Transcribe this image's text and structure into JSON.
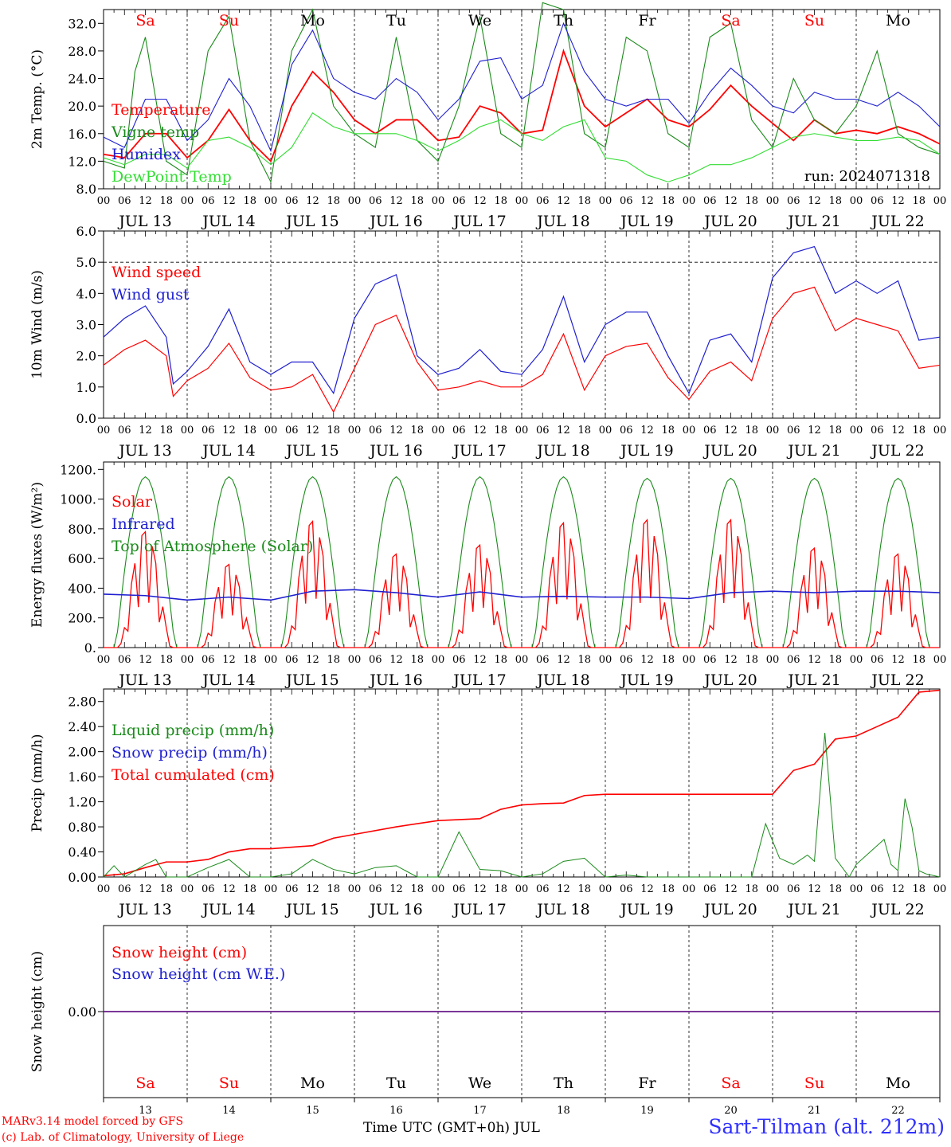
{
  "footer": {
    "model": "MARv3.14 model forced by GFS",
    "credit": "(c) Lab. of Climatology, University of Liege",
    "time_axis": "Time UTC (GMT+0h) JUL",
    "station": "Sart-Tilman (alt. 212m)"
  },
  "colors": {
    "red": "#ff0000",
    "green": "#1a8a1a",
    "blue": "#1f1fd0",
    "lightgreen": "#33dd33",
    "purple": "#6a1a8a"
  },
  "chart_data": [
    {
      "type": "line",
      "ylabel": "2m Temp. (°C)",
      "ylim": [
        8,
        34
      ],
      "yticks": [
        8.0,
        12.0,
        16.0,
        20.0,
        24.0,
        28.0,
        32.0
      ],
      "ytick_labels": [
        "8.0",
        "12.0",
        "16.0",
        "20.0",
        "24.0",
        "28.0",
        "32.0"
      ],
      "x_hours_labels": [
        "00",
        "06",
        "12",
        "18"
      ],
      "x_day_labels": [
        "JUL 13",
        "JUL 14",
        "JUL 15",
        "JUL 16",
        "JUL 17",
        "JUL 18",
        "JUL 19",
        "JUL 20",
        "JUL 21",
        "JUL 22"
      ],
      "weekdays": [
        "Sa",
        "Su",
        "Mo",
        "Tu",
        "We",
        "Th",
        "Fr",
        "Sa",
        "Su",
        "Mo"
      ],
      "weekday_colors": [
        "red",
        "red",
        "black",
        "black",
        "black",
        "black",
        "black",
        "red",
        "red",
        "black"
      ],
      "annotation": "run: 2024071318",
      "legend": [
        "Temperature",
        "Vigne temp",
        "Humidex",
        "DewPoint Temp"
      ],
      "series": [
        {
          "name": "Temperature",
          "color": "red",
          "x": [
            0,
            6,
            12,
            18,
            24,
            30,
            36,
            42,
            48,
            54,
            60,
            66,
            72,
            78,
            84,
            90,
            96,
            102,
            108,
            114,
            120,
            126,
            132,
            138,
            144,
            150,
            156,
            162,
            168,
            174,
            180,
            186,
            192,
            198,
            204,
            210,
            216,
            222,
            228,
            234,
            240
          ],
          "values": [
            13,
            12.5,
            16,
            16,
            12.5,
            15,
            19.5,
            15,
            12,
            20,
            25,
            22,
            18,
            16,
            18,
            18,
            15,
            15.5,
            20,
            19,
            16,
            16.5,
            28,
            20,
            17,
            19,
            21,
            18,
            17,
            19.5,
            23,
            20,
            17.5,
            15,
            18,
            16,
            16.5,
            16,
            17,
            16,
            14.5
          ]
        },
        {
          "name": "Vigne temp",
          "color": "green",
          "x": [
            0,
            6,
            9,
            12,
            18,
            24,
            30,
            36,
            42,
            48,
            54,
            60,
            66,
            72,
            78,
            84,
            90,
            96,
            102,
            108,
            114,
            120,
            126,
            132,
            138,
            144,
            150,
            156,
            162,
            168,
            174,
            180,
            186,
            192,
            198,
            204,
            210,
            216,
            222,
            228,
            234,
            240
          ],
          "values": [
            12,
            11,
            25,
            30,
            12,
            10,
            28,
            33,
            15,
            9,
            28,
            34,
            20,
            16,
            14,
            30,
            15,
            12,
            20,
            33,
            16,
            14,
            35,
            34,
            16,
            14,
            30,
            28,
            16,
            14,
            30,
            32,
            18,
            14,
            24,
            18,
            16,
            20,
            28,
            16,
            14,
            13
          ]
        },
        {
          "name": "Humidex",
          "color": "blue",
          "x": [
            0,
            6,
            12,
            18,
            24,
            30,
            36,
            42,
            48,
            54,
            60,
            66,
            72,
            78,
            84,
            90,
            96,
            102,
            108,
            114,
            120,
            126,
            132,
            138,
            144,
            150,
            156,
            162,
            168,
            174,
            180,
            186,
            192,
            198,
            204,
            210,
            216,
            222,
            228,
            234,
            240
          ],
          "values": [
            15.5,
            14,
            21,
            21,
            15,
            18,
            24,
            20,
            13.5,
            26,
            31,
            24,
            22,
            21,
            24,
            22,
            18,
            21,
            26.5,
            27,
            21,
            23,
            32,
            25,
            21,
            20,
            21,
            21,
            17.5,
            22,
            25.5,
            23,
            20,
            19,
            22,
            21,
            21,
            20,
            22,
            20,
            17
          ]
        },
        {
          "name": "DewPoint Temp",
          "color": "lightgreen",
          "x": [
            0,
            6,
            12,
            18,
            24,
            30,
            36,
            42,
            48,
            54,
            60,
            66,
            72,
            78,
            84,
            90,
            96,
            102,
            108,
            114,
            120,
            126,
            132,
            138,
            144,
            150,
            156,
            162,
            168,
            174,
            180,
            186,
            192,
            198,
            204,
            210,
            216,
            222,
            228,
            234,
            240
          ],
          "values": [
            12.5,
            11.5,
            13,
            13,
            11,
            15,
            15.5,
            14,
            11.5,
            14,
            19,
            17,
            16,
            16,
            16,
            15,
            13.5,
            15,
            17,
            18,
            16,
            15,
            17,
            18,
            12.5,
            12,
            10,
            9,
            10,
            11.5,
            11.5,
            12.5,
            14,
            15.5,
            16,
            15.5,
            15,
            15,
            15.5,
            15,
            13
          ]
        }
      ]
    },
    {
      "type": "line",
      "ylabel": "10m Wind (m/s)",
      "ylim": [
        0,
        6
      ],
      "yticks": [
        0,
        1,
        2,
        3,
        4,
        5,
        6
      ],
      "ytick_labels": [
        "0.0",
        "1.0",
        "2.0",
        "3.0",
        "4.0",
        "5.0",
        "6.0"
      ],
      "x_hours_labels": [
        "00",
        "06",
        "12",
        "18"
      ],
      "x_day_labels": [
        "JUL 13",
        "JUL 14",
        "JUL 15",
        "JUL 16",
        "JUL 17",
        "JUL 18",
        "JUL 19",
        "JUL 20",
        "JUL 21",
        "JUL 22"
      ],
      "reference_line": 5.0,
      "legend": [
        "Wind speed",
        "Wind gust"
      ],
      "series": [
        {
          "name": "Wind speed",
          "color": "red",
          "x": [
            0,
            6,
            12,
            18,
            20,
            24,
            30,
            36,
            42,
            48,
            54,
            60,
            66,
            72,
            78,
            84,
            90,
            96,
            102,
            108,
            114,
            120,
            126,
            132,
            138,
            144,
            150,
            156,
            162,
            168,
            174,
            180,
            186,
            192,
            198,
            204,
            210,
            216,
            222,
            228,
            234,
            240
          ],
          "values": [
            1.7,
            2.2,
            2.5,
            2.0,
            0.7,
            1.2,
            1.6,
            2.4,
            1.3,
            0.9,
            1.0,
            1.4,
            0.2,
            1.6,
            3.0,
            3.3,
            1.8,
            0.9,
            1.0,
            1.2,
            1.0,
            1.0,
            1.4,
            2.7,
            0.9,
            2.0,
            2.3,
            2.4,
            1.3,
            0.6,
            1.5,
            1.8,
            1.2,
            3.2,
            4.0,
            4.2,
            2.8,
            3.2,
            3.0,
            2.8,
            1.6,
            1.7
          ]
        },
        {
          "name": "Wind gust",
          "color": "blue",
          "x": [
            0,
            6,
            12,
            18,
            20,
            24,
            30,
            36,
            42,
            48,
            54,
            60,
            66,
            72,
            78,
            84,
            90,
            96,
            102,
            108,
            114,
            120,
            126,
            132,
            138,
            144,
            150,
            156,
            162,
            168,
            174,
            180,
            186,
            192,
            198,
            204,
            210,
            216,
            222,
            228,
            234,
            240
          ],
          "values": [
            2.6,
            3.2,
            3.6,
            2.6,
            1.1,
            1.5,
            2.3,
            3.5,
            1.8,
            1.4,
            1.8,
            1.8,
            0.8,
            3.2,
            4.3,
            4.6,
            2.0,
            1.4,
            1.6,
            2.2,
            1.5,
            1.4,
            2.2,
            3.9,
            1.8,
            3.0,
            3.4,
            3.4,
            2.0,
            0.8,
            2.5,
            2.7,
            1.8,
            4.5,
            5.3,
            5.5,
            4.0,
            4.4,
            4.0,
            4.4,
            2.5,
            2.6
          ]
        }
      ]
    },
    {
      "type": "line",
      "ylabel": "Energy fluxes (W/m²)",
      "ylim": [
        0,
        1250
      ],
      "yticks": [
        0,
        200,
        400,
        600,
        800,
        1000,
        1200
      ],
      "ytick_labels": [
        "0.",
        "200.",
        "400.",
        "600.",
        "800.",
        "1000.",
        "1200."
      ],
      "x_hours_labels": [
        "00",
        "06",
        "12",
        "18"
      ],
      "x_day_labels": [
        "JUL 13",
        "JUL 14",
        "JUL 15",
        "JUL 16",
        "JUL 17",
        "JUL 18",
        "JUL 19",
        "JUL 20",
        "JUL 21",
        "JUL 22"
      ],
      "legend": [
        "Solar",
        "Infrared",
        "Top of Atmosphere (Solar)"
      ],
      "daily_peaks": {
        "solar": [
          780,
          560,
          850,
          630,
          690,
          840,
          860,
          860,
          670,
          630
        ],
        "toa": [
          1150,
          1150,
          1150,
          1150,
          1150,
          1150,
          1140,
          1140,
          1140,
          1140
        ]
      },
      "series": [
        {
          "name": "Infrared",
          "color": "blue",
          "x": [
            0,
            12,
            24,
            36,
            48,
            60,
            72,
            84,
            96,
            108,
            120,
            132,
            144,
            156,
            168,
            180,
            192,
            204,
            216,
            228,
            240
          ],
          "values": [
            360,
            350,
            320,
            340,
            320,
            380,
            390,
            370,
            340,
            375,
            340,
            345,
            340,
            340,
            330,
            370,
            380,
            370,
            380,
            380,
            370
          ]
        }
      ]
    },
    {
      "type": "line",
      "ylabel": "Precip (mm/h)",
      "ylim": [
        0,
        3.0
      ],
      "yticks": [
        0,
        0.4,
        0.8,
        1.2,
        1.6,
        2.0,
        2.4,
        2.8
      ],
      "ytick_labels": [
        "0.00",
        "0.40",
        "0.80",
        "1.20",
        "1.60",
        "2.00",
        "2.40",
        "2.80"
      ],
      "x_hours_labels": [
        "00",
        "06",
        "12",
        "18"
      ],
      "x_day_labels": [
        "JUL 13",
        "JUL 14",
        "JUL 15",
        "JUL 16",
        "JUL 17",
        "JUL 18",
        "JUL 19",
        "JUL 20",
        "JUL 21",
        "JUL 22"
      ],
      "legend": [
        "Liquid precip (mm/h)",
        "Snow precip (mm/h)",
        "Total cumulated (cm)"
      ],
      "series": [
        {
          "name": "Total cumulated (cm)",
          "color": "red",
          "x": [
            0,
            6,
            12,
            18,
            24,
            30,
            36,
            42,
            48,
            60,
            66,
            72,
            84,
            96,
            108,
            114,
            120,
            126,
            132,
            138,
            144,
            156,
            168,
            180,
            192,
            198,
            204,
            210,
            216,
            222,
            228,
            234,
            240
          ],
          "values": [
            0.02,
            0.05,
            0.15,
            0.24,
            0.24,
            0.28,
            0.4,
            0.45,
            0.45,
            0.5,
            0.62,
            0.68,
            0.8,
            0.9,
            0.93,
            1.08,
            1.15,
            1.17,
            1.18,
            1.3,
            1.32,
            1.32,
            1.32,
            1.32,
            1.32,
            1.7,
            1.8,
            2.2,
            2.25,
            2.4,
            2.55,
            2.95,
            2.98
          ]
        },
        {
          "name": "Liquid precip (mm/h)",
          "color": "green",
          "x": [
            0,
            3,
            6,
            12,
            15,
            18,
            24,
            30,
            36,
            42,
            48,
            54,
            60,
            66,
            72,
            78,
            84,
            90,
            96,
            102,
            108,
            114,
            120,
            126,
            132,
            138,
            144,
            150,
            156,
            162,
            168,
            174,
            180,
            186,
            190,
            194,
            198,
            202,
            204,
            207,
            210,
            214,
            216,
            220,
            224,
            226,
            228,
            230,
            232,
            234,
            236,
            240
          ],
          "values": [
            0,
            0.18,
            0,
            0.2,
            0.28,
            0,
            0,
            0.15,
            0.28,
            0,
            0,
            0.05,
            0.28,
            0.12,
            0.05,
            0.15,
            0.18,
            0,
            0,
            0.72,
            0.12,
            0.1,
            0,
            0.05,
            0.25,
            0.3,
            0,
            0.03,
            0,
            0,
            0,
            0,
            0,
            0,
            0.85,
            0.3,
            0.2,
            0.35,
            0.25,
            2.3,
            0.3,
            0,
            0.2,
            0.4,
            0.6,
            0.2,
            0.1,
            1.25,
            0.8,
            0.1,
            0.05,
            0
          ]
        }
      ]
    },
    {
      "type": "line",
      "ylabel": "Snow height (cm)",
      "ytick_labels": [
        "0.00"
      ],
      "legend": [
        "Snow height (cm)",
        "Snow height (cm W.E.)"
      ],
      "day_numbers": [
        "13",
        "14",
        "15",
        "16",
        "17",
        "18",
        "19",
        "20",
        "21",
        "22"
      ],
      "weekdays": [
        "Sa",
        "Su",
        "Mo",
        "Tu",
        "We",
        "Th",
        "Fr",
        "Sa",
        "Su",
        "Mo"
      ],
      "weekday_colors": [
        "red",
        "red",
        "black",
        "black",
        "black",
        "black",
        "black",
        "red",
        "red",
        "black"
      ],
      "series": [
        {
          "name": "Snow height (cm)",
          "color": "purple",
          "x": [
            0,
            240
          ],
          "values": [
            0,
            0
          ]
        }
      ]
    }
  ]
}
